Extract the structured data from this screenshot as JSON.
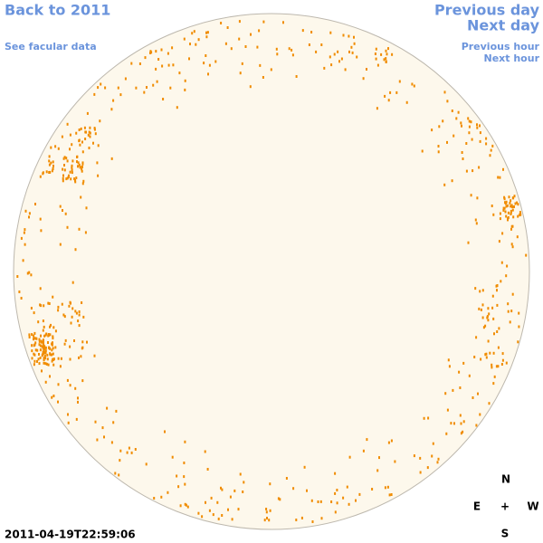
{
  "nav": {
    "back": "Back to 2011",
    "facular": "See facular data",
    "prev_day": "Previous day",
    "next_day": "Next day",
    "prev_hour": "Previous hour",
    "next_hour": "Next hour"
  },
  "timestamp": "2011-04-19T22:59:06",
  "compass": {
    "north": "N",
    "east": "E",
    "center": "+",
    "west": "W",
    "south": "S"
  }
}
